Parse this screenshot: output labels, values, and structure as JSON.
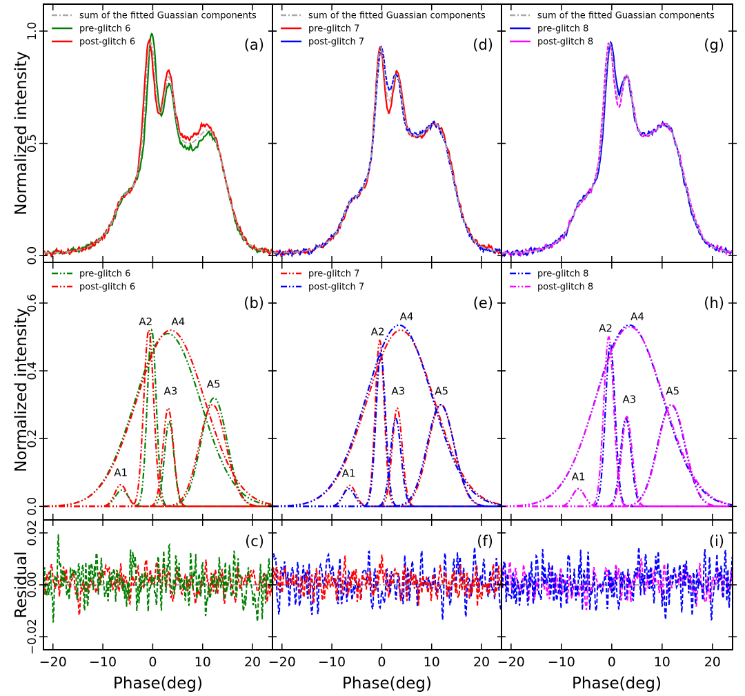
{
  "chart_data": {
    "type": "line",
    "layout": "3x3 grid; columns share y-axes per row, rows share x-axis",
    "xlabel": "Phase(deg)",
    "xlim": [
      -21.9,
      24.0
    ],
    "xticks": [
      -20,
      -10,
      0,
      10,
      20
    ],
    "xtick_labels": [
      "−20",
      "−10",
      "0",
      "10",
      "20"
    ],
    "rows": [
      {
        "ylabel": "Normalized intensity",
        "ylim": [
          -0.03,
          1.12
        ],
        "yticks": [
          0.0,
          0.5,
          1.0
        ],
        "ytick_labels": [
          "0.0",
          "0.5",
          "1.0"
        ]
      },
      {
        "ylabel": "Normalized intensity",
        "ylim": [
          -0.04,
          0.72
        ],
        "yticks": [
          0.0,
          0.2,
          0.4,
          0.6
        ],
        "ytick_labels": [
          "0.0",
          "0.2",
          "0.4",
          "0.6"
        ]
      },
      {
        "ylabel": "Residual",
        "ylim": [
          -0.025,
          0.025
        ],
        "yticks": [
          -0.02,
          0.0,
          0.02
        ],
        "ytick_labels": [
          "−0.02",
          "0.00",
          "0.02"
        ]
      }
    ],
    "sum_legend_label": "sum of the fitted Guassian components",
    "sum_color": "#a9a9a9",
    "component_labels": [
      "A1",
      "A2",
      "A3",
      "A4",
      "A5"
    ],
    "columns": [
      {
        "glitch": 6,
        "panel_labels": [
          "(a)",
          "(b)",
          "(c)"
        ],
        "series": [
          {
            "name": "pre-glitch 6",
            "color": "#008000",
            "components": [
              {
                "label": "A1",
                "center": -6.2,
                "amplitude": 0.048,
                "sigma": 1.3
              },
              {
                "label": "A2",
                "center": -0.2,
                "amplitude": 0.52,
                "sigma": 0.9
              },
              {
                "label": "A3",
                "center": 3.3,
                "amplitude": 0.25,
                "sigma": 0.95
              },
              {
                "label": "A4",
                "center": 3.0,
                "amplitude": 0.51,
                "sigma": 6.6
              },
              {
                "label": "A5",
                "center": 12.3,
                "amplitude": 0.32,
                "sigma": 2.6
              }
            ],
            "residual_rms": 0.0055
          },
          {
            "name": "post-glitch 6",
            "color": "#ff0000",
            "components": [
              {
                "label": "A1",
                "center": -6.4,
                "amplitude": 0.064,
                "sigma": 1.2
              },
              {
                "label": "A2",
                "center": -0.8,
                "amplitude": 0.52,
                "sigma": 1.0
              },
              {
                "label": "A3",
                "center": 3.1,
                "amplitude": 0.29,
                "sigma": 1.05
              },
              {
                "label": "A4",
                "center": 3.6,
                "amplitude": 0.52,
                "sigma": 6.8
              },
              {
                "label": "A5",
                "center": 12.0,
                "amplitude": 0.3,
                "sigma": 2.7
              }
            ],
            "residual_rms": 0.0035
          }
        ]
      },
      {
        "glitch": 7,
        "panel_labels": [
          "(d)",
          "(e)",
          "(f)"
        ],
        "series": [
          {
            "name": "pre-glitch 7",
            "color": "#ff0000",
            "components": [
              {
                "label": "A1",
                "center": -6.4,
                "amplitude": 0.062,
                "sigma": 1.2
              },
              {
                "label": "A2",
                "center": -0.4,
                "amplitude": 0.49,
                "sigma": 0.9
              },
              {
                "label": "A3",
                "center": 3.1,
                "amplitude": 0.29,
                "sigma": 1.0
              },
              {
                "label": "A4",
                "center": 3.8,
                "amplitude": 0.52,
                "sigma": 6.7
              },
              {
                "label": "A5",
                "center": 11.9,
                "amplitude": 0.3,
                "sigma": 2.6
              }
            ],
            "residual_rms": 0.0035
          },
          {
            "name": "post-glitch 7",
            "color": "#0000ff",
            "components": [
              {
                "label": "A1",
                "center": -6.6,
                "amplitude": 0.052,
                "sigma": 1.2
              },
              {
                "label": "A2",
                "center": -0.2,
                "amplitude": 0.45,
                "sigma": 0.95
              },
              {
                "label": "A3",
                "center": 2.8,
                "amplitude": 0.26,
                "sigma": 1.05
              },
              {
                "label": "A4",
                "center": 3.5,
                "amplitude": 0.535,
                "sigma": 6.6
              },
              {
                "label": "A5",
                "center": 11.8,
                "amplitude": 0.3,
                "sigma": 2.7
              }
            ],
            "residual_rms": 0.0055
          }
        ]
      },
      {
        "glitch": 8,
        "panel_labels": [
          "(g)",
          "(h)",
          "(i)"
        ],
        "series": [
          {
            "name": "pre-glitch 8",
            "color": "#0000ff",
            "components": [
              {
                "label": "A1",
                "center": -6.6,
                "amplitude": 0.052,
                "sigma": 1.2
              },
              {
                "label": "A2",
                "center": -0.3,
                "amplitude": 0.48,
                "sigma": 0.95
              },
              {
                "label": "A3",
                "center": 2.8,
                "amplitude": 0.26,
                "sigma": 1.05
              },
              {
                "label": "A4",
                "center": 3.5,
                "amplitude": 0.535,
                "sigma": 6.6
              },
              {
                "label": "A5",
                "center": 11.8,
                "amplitude": 0.3,
                "sigma": 2.7
              }
            ],
            "residual_rms": 0.0055
          },
          {
            "name": "post-glitch 8",
            "color": "#ff00ff",
            "components": [
              {
                "label": "A1",
                "center": -6.6,
                "amplitude": 0.052,
                "sigma": 1.2
              },
              {
                "label": "A2",
                "center": -0.6,
                "amplitude": 0.5,
                "sigma": 1.0
              },
              {
                "label": "A3",
                "center": 3.0,
                "amplitude": 0.265,
                "sigma": 1.05
              },
              {
                "label": "A4",
                "center": 3.6,
                "amplitude": 0.53,
                "sigma": 6.7
              },
              {
                "label": "A5",
                "center": 11.9,
                "amplitude": 0.3,
                "sigma": 2.7
              }
            ],
            "residual_rms": 0.0035
          }
        ]
      }
    ]
  }
}
